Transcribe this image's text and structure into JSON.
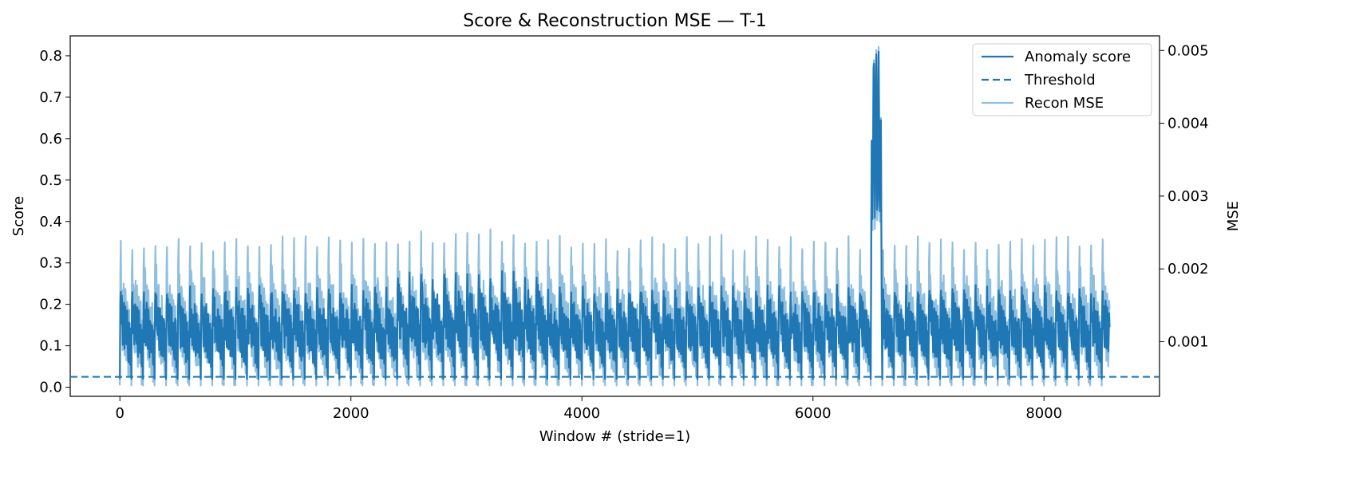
{
  "chart_data": {
    "type": "line",
    "title": "Score & Reconstruction MSE — T-1",
    "xlabel": "Window # (stride=1)",
    "ylabel": "Score",
    "ylabel_right": "MSE",
    "xlim": [
      -430,
      9000
    ],
    "ylim": [
      -0.022,
      0.848
    ],
    "ylim_right": [
      0.00025,
      0.0052
    ],
    "x_ticks": [
      0,
      2000,
      4000,
      6000,
      8000
    ],
    "x_tick_labels": [
      "0",
      "2000",
      "4000",
      "6000",
      "8000"
    ],
    "y_ticks": [
      0.0,
      0.1,
      0.2,
      0.3,
      0.4,
      0.5,
      0.6,
      0.7,
      0.8
    ],
    "y_tick_labels": [
      "0.0",
      "0.1",
      "0.2",
      "0.3",
      "0.4",
      "0.5",
      "0.6",
      "0.7",
      "0.8"
    ],
    "y_right_ticks": [
      0.001,
      0.002,
      0.003,
      0.004,
      0.005
    ],
    "y_right_tick_labels": [
      "0.001",
      "0.002",
      "0.003",
      "0.004",
      "0.005"
    ],
    "legend_position": "top-right",
    "x_range": [
      0,
      8570
    ],
    "cycle_period": 100,
    "anomaly_window": [
      6500,
      6600
    ],
    "series": [
      {
        "name": "Anomaly score",
        "axis": "left",
        "style": "solid",
        "color": "#1f77b4",
        "baseline": 0.02,
        "typical_peak": 0.29,
        "peak_segment": [
          [
            2400,
            3700,
            0.33
          ]
        ],
        "anomaly_peak": 0.81
      },
      {
        "name": "Threshold",
        "axis": "left",
        "style": "dashed",
        "color": "#1f77b4",
        "value": 0.025
      },
      {
        "name": "Recon MSE",
        "axis": "right",
        "style": "solid",
        "color": "#8fbfdf",
        "baseline": 0.0004,
        "typical_peak": 0.00285,
        "peak_segment": [
          [
            2400,
            3700,
            0.00295
          ]
        ],
        "anomaly_peak": 0.00505
      }
    ]
  }
}
